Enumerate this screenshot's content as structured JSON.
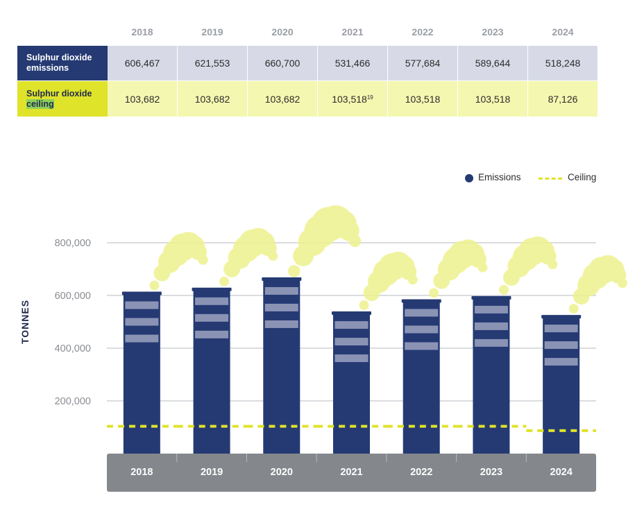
{
  "table": {
    "years": [
      "2018",
      "2019",
      "2020",
      "2021",
      "2022",
      "2023",
      "2024"
    ],
    "emissions_label": "Sulphur dioxide emissions",
    "ceiling_label_part1": "Sulphur dioxide",
    "ceiling_label_part2": "ceiling",
    "emissions_values": [
      "606,467",
      "621,553",
      "660,700",
      "531,466",
      "577,684",
      "589,644",
      "518,248"
    ],
    "ceiling_values": [
      "103,682",
      "103,682",
      "103,682",
      "103,518",
      "103,518",
      "103,518",
      "87,126"
    ],
    "footnote_2021": "19"
  },
  "legend": {
    "emissions": "Emissions",
    "ceiling": "Ceiling"
  },
  "colors": {
    "bar": "#253a73",
    "stripe": "#8b93b5",
    "ceiling": "#dfe32a",
    "smoke": "#eef18e",
    "ground": "#84878c"
  },
  "chart_data": {
    "type": "bar",
    "categories": [
      "2018",
      "2019",
      "2020",
      "2021",
      "2022",
      "2023",
      "2024"
    ],
    "series": [
      {
        "name": "Emissions",
        "values": [
          606467,
          621553,
          660700,
          531466,
          577684,
          589644,
          518248
        ]
      },
      {
        "name": "Ceiling",
        "values": [
          103682,
          103682,
          103682,
          103518,
          103518,
          103518,
          87126
        ]
      }
    ],
    "ylabel": "TONNES",
    "yticks": [
      200000,
      400000,
      600000,
      800000
    ],
    "ytick_labels": [
      "200,000",
      "400,000",
      "600,000",
      "800,000"
    ],
    "ylim": [
      0,
      800000
    ],
    "grid": true,
    "legend_position": "top-right"
  }
}
